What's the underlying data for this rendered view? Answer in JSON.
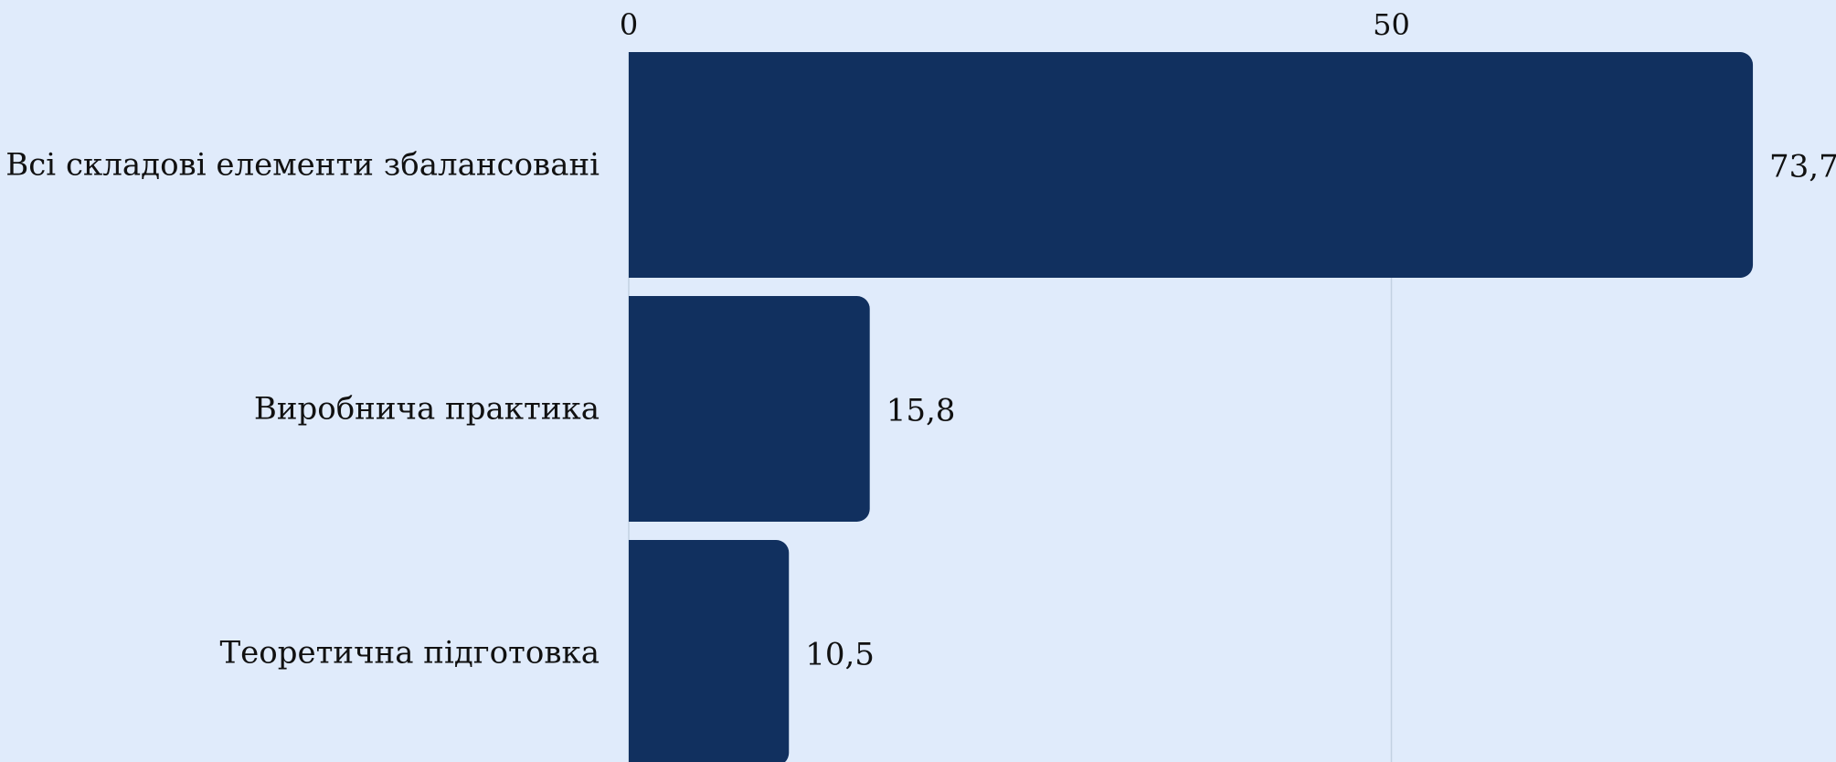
{
  "chart_data": {
    "type": "bar",
    "orientation": "horizontal",
    "categories": [
      "Всі складові елементи збалансовані",
      "Виробнича практика",
      "Теоретична підготовка"
    ],
    "values": [
      73.7,
      15.8,
      10.5
    ],
    "value_labels": [
      "73,7",
      "15,8",
      "10,5"
    ],
    "xaxis": {
      "position": "top",
      "ticks": [
        0,
        50
      ],
      "tick_labels": [
        "0",
        "50"
      ],
      "range": [
        0,
        73.7
      ]
    },
    "grid": true,
    "legend": "none",
    "title": "",
    "xlabel": "",
    "ylabel": "",
    "colors": {
      "background": "#e0ebfb",
      "bar": "#11305f",
      "grid": "#c3d1e2",
      "text": "#111111"
    }
  }
}
